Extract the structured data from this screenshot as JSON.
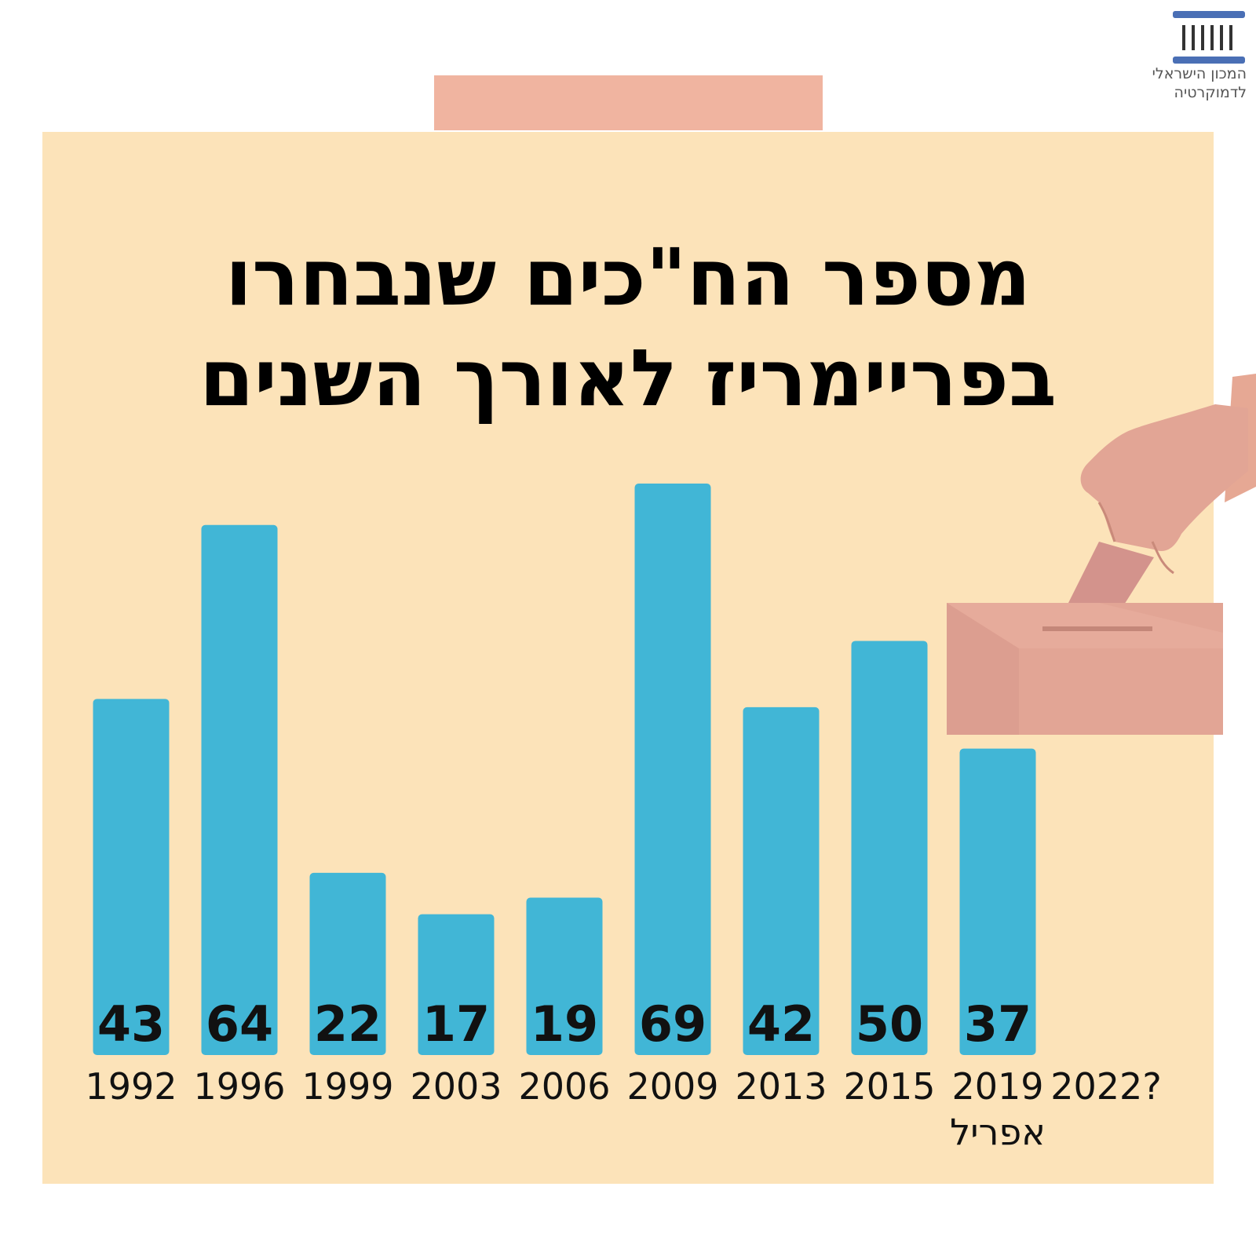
{
  "logo": {
    "line1": "המכון הישראלי",
    "line2": "לדמוקרטיה",
    "color": "#4a6fb5"
  },
  "title": {
    "line1": "מספר הח\"כים שנבחרו",
    "line2": "בפריימריז לאורך השנים"
  },
  "colors": {
    "panel": "#fce3b9",
    "bar": "#41b6d6",
    "tab": "#f0b4a0",
    "illustration": "#e2a595"
  },
  "chart_data": {
    "type": "bar",
    "categories": [
      "1992",
      "1996",
      "1999",
      "2003",
      "2006",
      "2009",
      "2013",
      "2015",
      "2019",
      "2022?"
    ],
    "sublabels": [
      "",
      "",
      "",
      "",
      "",
      "",
      "",
      "",
      "אפריל",
      ""
    ],
    "values": [
      43,
      64,
      22,
      17,
      19,
      69,
      42,
      50,
      37,
      null
    ],
    "title": "מספר הח\"כים שנבחרו בפריימריז לאורך השנים",
    "xlabel": "",
    "ylabel": "",
    "ylim": [
      0,
      69
    ],
    "grid": false,
    "data_labels": "inside-bottom"
  }
}
